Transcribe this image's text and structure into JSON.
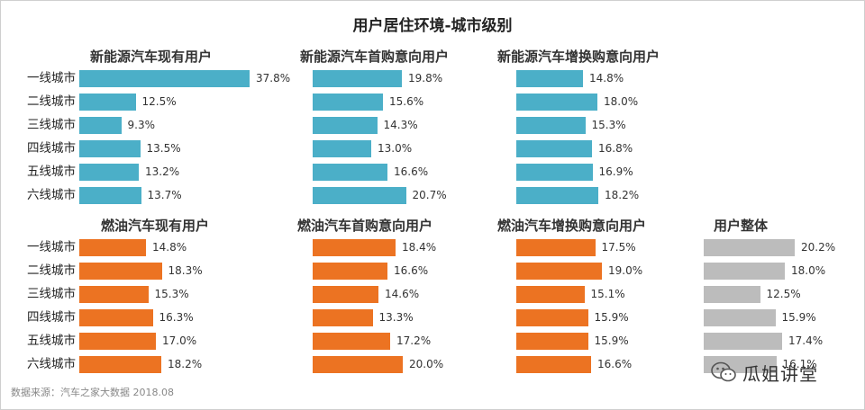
{
  "title": "用户居住环境-城市级别",
  "source": "数据来源：汽车之家大数据 2018.08",
  "watermark": "瓜姐讲堂",
  "colors": {
    "ev": "#4bafc8",
    "fuel": "#ec7322",
    "total": "#bcbcbc"
  },
  "chart_data": [
    {
      "type": "bar",
      "orientation": "horizontal",
      "title": "新能源汽车现有用户",
      "categories": [
        "一线城市",
        "二线城市",
        "三线城市",
        "四线城市",
        "五线城市",
        "六线城市"
      ],
      "values": [
        37.8,
        12.5,
        9.3,
        13.5,
        13.2,
        13.7
      ],
      "unit": "%"
    },
    {
      "type": "bar",
      "orientation": "horizontal",
      "title": "新能源汽车首购意向用户",
      "categories": [
        "一线城市",
        "二线城市",
        "三线城市",
        "四线城市",
        "五线城市",
        "六线城市"
      ],
      "values": [
        19.8,
        15.6,
        14.3,
        13.0,
        16.6,
        20.7
      ],
      "unit": "%"
    },
    {
      "type": "bar",
      "orientation": "horizontal",
      "title": "新能源汽车增换购意向用户",
      "categories": [
        "一线城市",
        "二线城市",
        "三线城市",
        "四线城市",
        "五线城市",
        "六线城市"
      ],
      "values": [
        14.8,
        18.0,
        15.3,
        16.8,
        16.9,
        18.2
      ],
      "unit": "%"
    },
    {
      "type": "bar",
      "orientation": "horizontal",
      "title": "燃油汽车现有用户",
      "categories": [
        "一线城市",
        "二线城市",
        "三线城市",
        "四线城市",
        "五线城市",
        "六线城市"
      ],
      "values": [
        14.8,
        18.3,
        15.3,
        16.3,
        17.0,
        18.2
      ],
      "unit": "%"
    },
    {
      "type": "bar",
      "orientation": "horizontal",
      "title": "燃油汽车首购意向用户",
      "categories": [
        "一线城市",
        "二线城市",
        "三线城市",
        "四线城市",
        "五线城市",
        "六线城市"
      ],
      "values": [
        18.4,
        16.6,
        14.6,
        13.3,
        17.2,
        20.0
      ],
      "unit": "%"
    },
    {
      "type": "bar",
      "orientation": "horizontal",
      "title": "燃油汽车增换购意向用户",
      "categories": [
        "一线城市",
        "二线城市",
        "三线城市",
        "四线城市",
        "五线城市",
        "六线城市"
      ],
      "values": [
        17.5,
        19.0,
        15.1,
        15.9,
        15.9,
        16.6
      ],
      "unit": "%"
    },
    {
      "type": "bar",
      "orientation": "horizontal",
      "title": "用户整体",
      "categories": [
        "一线城市",
        "二线城市",
        "三线城市",
        "四线城市",
        "五线城市",
        "六线城市"
      ],
      "values": [
        20.2,
        18.0,
        12.5,
        15.9,
        17.4,
        16.1
      ],
      "unit": "%"
    }
  ]
}
